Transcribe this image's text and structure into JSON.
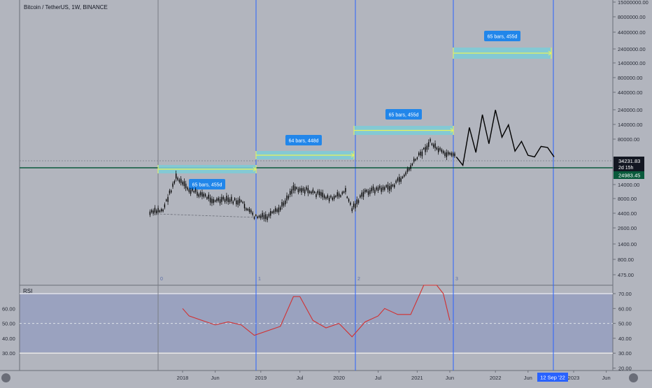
{
  "header": {
    "title": "Bitcoin / TetherUS, 1W, BINANCE"
  },
  "rsi": {
    "title": "RSI"
  },
  "colors": {
    "background": "#b2b5be",
    "rsi_band": "#9aa2bf",
    "rsi_line": "#d32f2f",
    "price_candle": "#000000",
    "cycle_line": "#2962ff",
    "measure_fill": "#7ecbd6",
    "measure_line": "#e8f55a",
    "measure_label_bg": "#2186ea",
    "support_line": "#0a5a3c",
    "projection": "#000000"
  },
  "chart_data": [
    {
      "type": "line",
      "title": "Bitcoin / TetherUS, 1W, BINANCE",
      "scale": "log",
      "y_axis_ticks": [
        "15000000.00",
        "8000000.00",
        "4400000.00",
        "2400000.00",
        "1400000.00",
        "800000.00",
        "440000.00",
        "240000.00",
        "140000.00",
        "80000.00",
        "44000.00",
        "24000.00",
        "14000.00",
        "8000.00",
        "4400.00",
        "2600.00",
        "1400.00",
        "800.00",
        "475.00"
      ],
      "x_axis_ticks": [
        "2018",
        "Jun",
        "2019",
        "Jul",
        "2020",
        "Jul",
        "2021",
        "Jun",
        "2022",
        "Jun",
        "2023",
        "Jun"
      ],
      "price_labels": [
        {
          "name": "last",
          "value": "34231.83",
          "sub": "2d 15h"
        },
        {
          "name": "support",
          "value": "24983.45"
        }
      ],
      "cycle_markers": [
        "0",
        "1",
        "2",
        "3"
      ],
      "measurements": [
        "65 bars, 455d",
        "64 bars, 448d",
        "65 bars, 455d",
        "65 bars, 455d"
      ],
      "cursor_date": "12 Sep '22",
      "series": [
        {
          "x": [
            "2017-08",
            "2017-10",
            "2017-12",
            "2018-02",
            "2018-04",
            "2018-06",
            "2018-08",
            "2018-10",
            "2018-12",
            "2019-02",
            "2019-04",
            "2019-06",
            "2019-08",
            "2019-10",
            "2019-12",
            "2020-02",
            "2020-03",
            "2020-05",
            "2020-07",
            "2020-09",
            "2020-11",
            "2021-01",
            "2021-03",
            "2021-05",
            "2021-07"
          ],
          "y": [
            4300,
            4900,
            16000,
            10000,
            8500,
            6800,
            7000,
            6400,
            3800,
            3700,
            5100,
            11000,
            10000,
            8500,
            7300,
            9500,
            5100,
            9400,
            10500,
            11200,
            17000,
            33000,
            58000,
            38000,
            34000
          ]
        },
        {
          "name": "",
          "x": [
            "2021-07",
            "2021-08",
            "2021-09",
            "2021-10",
            "2021-11",
            "2021-12",
            "2022-01",
            "2022-02",
            "2022-03",
            "2022-04",
            "2022-05",
            "2022-06",
            "2022-07",
            "2022-08",
            "2022-09",
            "2022-10"
          ],
          "y": [
            34000,
            25000,
            100000,
            40000,
            160000,
            55000,
            190000,
            70000,
            110000,
            42000,
            60000,
            36000,
            34000,
            50000,
            48000,
            34000
          ]
        }
      ]
    },
    {
      "type": "line",
      "title": "RSI",
      "y_axis_ticks": [
        "70.00",
        "60.00",
        "50.00",
        "40.00",
        "30.00",
        "20.00"
      ],
      "left_axis_ticks": [
        "60.00",
        "50.00",
        "40.00",
        "30.00"
      ],
      "bands": [
        70,
        30
      ],
      "series": [
        {
          "x": [
            "2018-01",
            "2018-02",
            "2018-04",
            "2018-06",
            "2018-08",
            "2018-10",
            "2018-12",
            "2019-02",
            "2019-04",
            "2019-05",
            "2019-06",
            "2019-07",
            "2019-09",
            "2019-11",
            "2020-01",
            "2020-03",
            "2020-05",
            "2020-07",
            "2020-08",
            "2020-10",
            "2020-12",
            "2021-02",
            "2021-04",
            "2021-05",
            "2021-06"
          ],
          "y": [
            60,
            55,
            52,
            49,
            51,
            49,
            42,
            45,
            48,
            58,
            68,
            68,
            52,
            47,
            50,
            41,
            51,
            55,
            60,
            56,
            56,
            76,
            78,
            70,
            52
          ]
        }
      ]
    }
  ]
}
